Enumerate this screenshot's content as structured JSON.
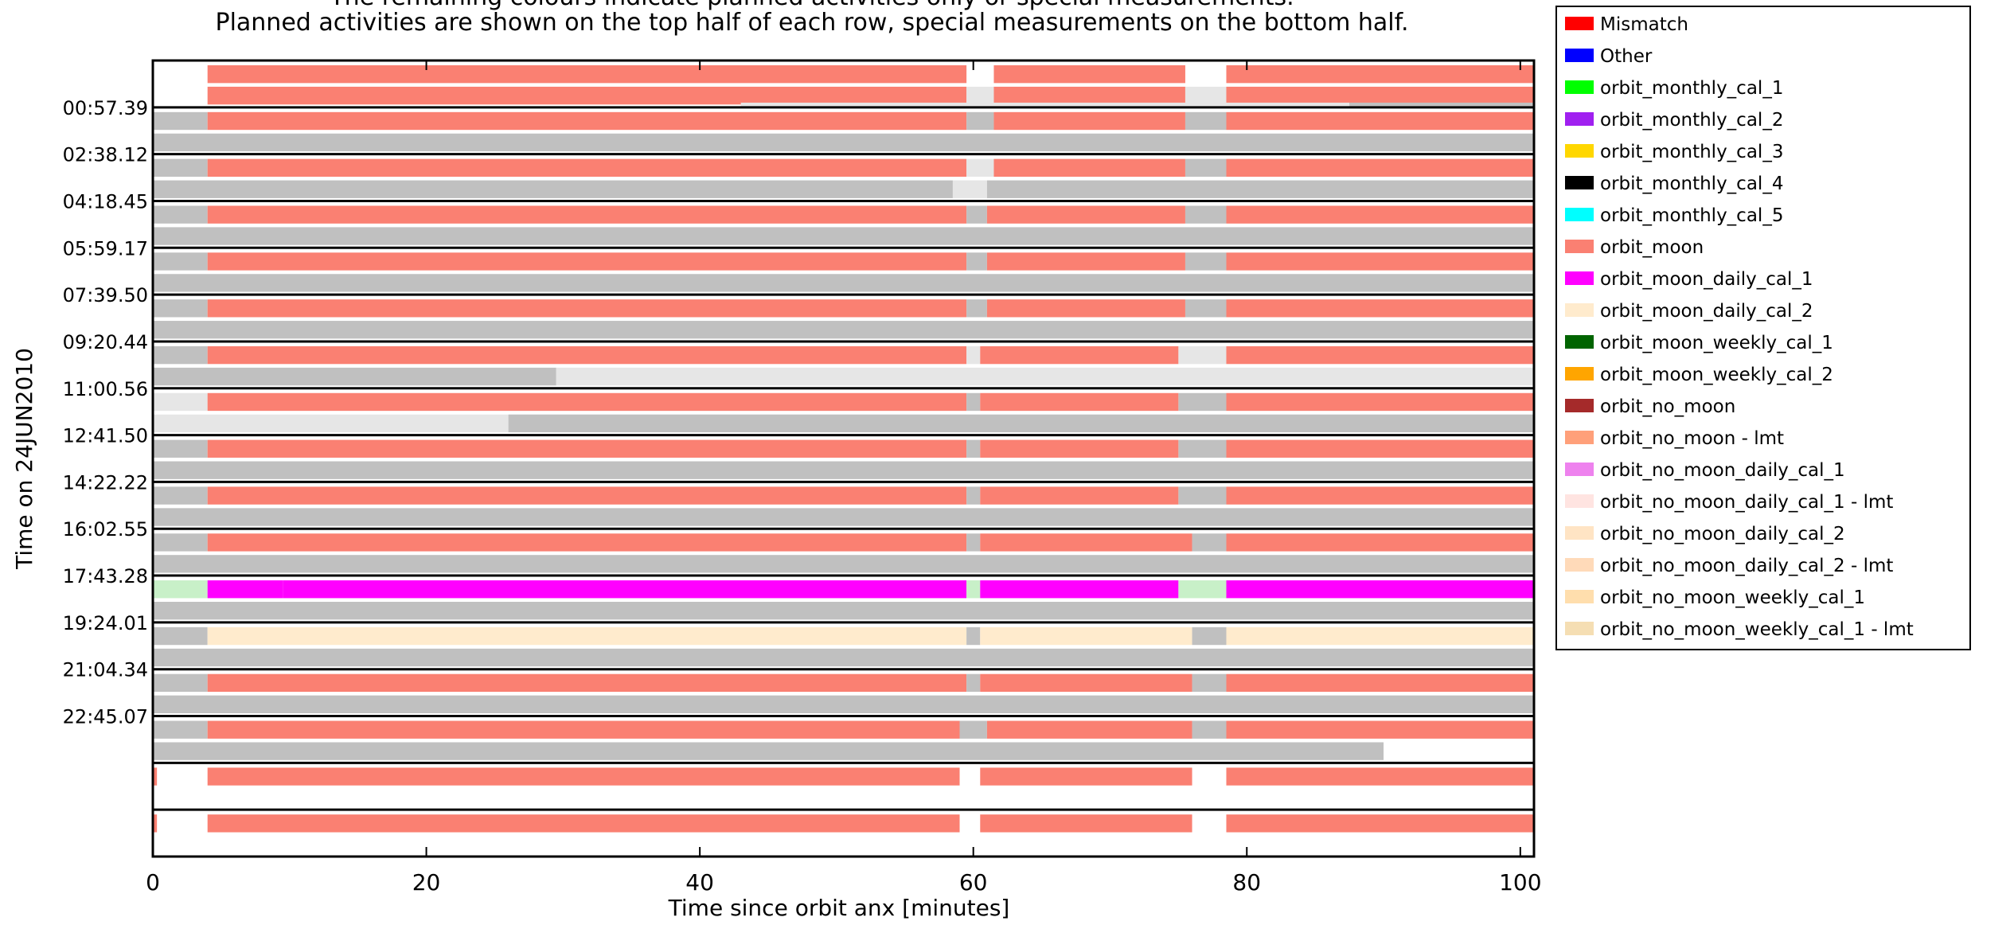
{
  "chart_data": {
    "type": "timeline",
    "title_lines": [
      "The remaining colours indicate planned activities only or special measurements.",
      "Planned activities are shown on the top half of each row, special measurements on the bottom half."
    ],
    "xlabel": "Time since orbit anx [minutes]",
    "ylabel": "Time on 24JUN2010",
    "xlim": [
      0,
      101
    ],
    "x_ticks": [
      0,
      20,
      40,
      60,
      80,
      100
    ],
    "row_count": 17,
    "row_start_labels": [
      "",
      "00:57.39",
      "02:38.12",
      "04:18.45",
      "05:59.17",
      "07:39.50",
      "09:20.44",
      "11:00.56",
      "12:41.50",
      "14:22.22",
      "16:02.55",
      "17:43.28",
      "19:24.01",
      "21:04.34",
      "22:45.07",
      "",
      ""
    ],
    "legend": [
      {
        "label": "Mismatch",
        "color": "#ff0000"
      },
      {
        "label": "Other",
        "color": "#0000ff"
      },
      {
        "label": "orbit_monthly_cal_1",
        "color": "#00ff00"
      },
      {
        "label": "orbit_monthly_cal_2",
        "color": "#a020f0"
      },
      {
        "label": "orbit_monthly_cal_3",
        "color": "#ffd700"
      },
      {
        "label": "orbit_monthly_cal_4",
        "color": "#000000"
      },
      {
        "label": "orbit_monthly_cal_5",
        "color": "#00ffff"
      },
      {
        "label": "orbit_moon",
        "color": "#fa8072"
      },
      {
        "label": "orbit_moon_daily_cal_1",
        "color": "#ff00ff"
      },
      {
        "label": "orbit_moon_daily_cal_2",
        "color": "#ffebcd"
      },
      {
        "label": "orbit_moon_weekly_cal_1",
        "color": "#006400"
      },
      {
        "label": "orbit_moon_weekly_cal_2",
        "color": "#ffa500"
      },
      {
        "label": "orbit_no_moon",
        "color": "#a52a2a"
      },
      {
        "label": "orbit_no_moon - lmt",
        "color": "#ffa07a"
      },
      {
        "label": "orbit_no_moon_daily_cal_1",
        "color": "#ee82ee"
      },
      {
        "label": "orbit_no_moon_daily_cal_1 - lmt",
        "color": "#ffe4e1"
      },
      {
        "label": "orbit_no_moon_daily_cal_2",
        "color": "#ffe4c4"
      },
      {
        "label": "orbit_no_moon_daily_cal_2 - lmt",
        "color": "#ffdab9"
      },
      {
        "label": "orbit_no_moon_weekly_cal_1",
        "color": "#ffdead"
      },
      {
        "label": "orbit_no_moon_weekly_cal_1 - lmt",
        "color": "#f5deb3"
      }
    ],
    "segment_colors": {
      "moon": "#fa8072",
      "gray": "#c0c0c0",
      "light": "#e6e6e6",
      "magenta": "#ff00ff",
      "cream": "#ffebcd",
      "green": "#c8f0c8",
      "violet": "#cc55ff",
      "empty": "#ffffff"
    },
    "rows": [
      {
        "top": [
          [
            4,
            59.5,
            "moon"
          ],
          [
            59.5,
            61.5,
            "empty"
          ],
          [
            61.5,
            75.5,
            "moon"
          ],
          [
            75.5,
            78.5,
            "empty"
          ],
          [
            78.5,
            101,
            "moon"
          ]
        ],
        "bottom": [
          [
            4,
            59.5,
            "moon"
          ],
          [
            59.5,
            61.5,
            "light"
          ],
          [
            61.5,
            75.5,
            "moon"
          ],
          [
            75.5,
            78.5,
            "light"
          ],
          [
            78.5,
            101,
            "moon"
          ]
        ],
        "bottom2": [
          [
            43,
            87.5,
            "light"
          ],
          [
            87.5,
            101,
            "gray"
          ]
        ]
      },
      {
        "top": [
          [
            0,
            4,
            "gray"
          ],
          [
            4,
            59.5,
            "moon"
          ],
          [
            59.5,
            61.5,
            "gray"
          ],
          [
            61.5,
            75.5,
            "moon"
          ],
          [
            75.5,
            78.5,
            "gray"
          ],
          [
            78.5,
            101,
            "moon"
          ]
        ],
        "bottom": [
          [
            0,
            101,
            "gray"
          ]
        ]
      },
      {
        "top": [
          [
            0,
            4,
            "gray"
          ],
          [
            4,
            59.5,
            "moon"
          ],
          [
            59.5,
            61.5,
            "light"
          ],
          [
            61.5,
            75.5,
            "moon"
          ],
          [
            75.5,
            78.5,
            "gray"
          ],
          [
            78.5,
            101,
            "moon"
          ]
        ],
        "bottom": [
          [
            0,
            58.5,
            "gray"
          ],
          [
            58.5,
            61,
            "light"
          ],
          [
            61,
            101,
            "gray"
          ]
        ]
      },
      {
        "top": [
          [
            0,
            4,
            "gray"
          ],
          [
            4,
            59.5,
            "moon"
          ],
          [
            59.5,
            61,
            "gray"
          ],
          [
            61,
            75.5,
            "moon"
          ],
          [
            75.5,
            78.5,
            "gray"
          ],
          [
            78.5,
            101,
            "moon"
          ]
        ],
        "bottom": [
          [
            0,
            101,
            "gray"
          ]
        ]
      },
      {
        "top": [
          [
            0,
            4,
            "gray"
          ],
          [
            4,
            59.5,
            "moon"
          ],
          [
            59.5,
            61,
            "gray"
          ],
          [
            61,
            75.5,
            "moon"
          ],
          [
            75.5,
            78.5,
            "gray"
          ],
          [
            78.5,
            101,
            "moon"
          ]
        ],
        "bottom": [
          [
            0,
            101,
            "gray"
          ]
        ]
      },
      {
        "top": [
          [
            0,
            4,
            "gray"
          ],
          [
            4,
            59.5,
            "moon"
          ],
          [
            59.5,
            61,
            "gray"
          ],
          [
            61,
            75.5,
            "moon"
          ],
          [
            75.5,
            78.5,
            "gray"
          ],
          [
            78.5,
            101,
            "moon"
          ]
        ],
        "bottom": [
          [
            0,
            101,
            "gray"
          ]
        ]
      },
      {
        "top": [
          [
            0,
            4,
            "gray"
          ],
          [
            4,
            59.5,
            "moon"
          ],
          [
            59.5,
            60.5,
            "light"
          ],
          [
            60.5,
            75,
            "moon"
          ],
          [
            75,
            78.5,
            "light"
          ],
          [
            78.5,
            101,
            "moon"
          ]
        ],
        "bottom": [
          [
            0,
            29.5,
            "gray"
          ],
          [
            29.5,
            101,
            "light"
          ]
        ]
      },
      {
        "top": [
          [
            0,
            4,
            "light"
          ],
          [
            4,
            59.5,
            "moon"
          ],
          [
            59.5,
            60.5,
            "gray"
          ],
          [
            60.5,
            75,
            "moon"
          ],
          [
            75,
            78.5,
            "gray"
          ],
          [
            78.5,
            101,
            "moon"
          ]
        ],
        "bottom": [
          [
            0,
            26,
            "light"
          ],
          [
            26,
            101,
            "gray"
          ]
        ]
      },
      {
        "top": [
          [
            0,
            4,
            "gray"
          ],
          [
            4,
            59.5,
            "moon"
          ],
          [
            59.5,
            60.5,
            "gray"
          ],
          [
            60.5,
            75,
            "moon"
          ],
          [
            75,
            78.5,
            "gray"
          ],
          [
            78.5,
            101,
            "moon"
          ]
        ],
        "bottom": [
          [
            0,
            101,
            "gray"
          ]
        ]
      },
      {
        "top": [
          [
            0,
            4,
            "gray"
          ],
          [
            4,
            59.5,
            "moon"
          ],
          [
            59.5,
            60.5,
            "gray"
          ],
          [
            60.5,
            75,
            "moon"
          ],
          [
            75,
            78.5,
            "gray"
          ],
          [
            78.5,
            101,
            "moon"
          ]
        ],
        "bottom": [
          [
            0,
            101,
            "gray"
          ]
        ]
      },
      {
        "top": [
          [
            0,
            4,
            "gray"
          ],
          [
            4,
            59.5,
            "moon"
          ],
          [
            59.5,
            60.5,
            "gray"
          ],
          [
            60.5,
            76,
            "moon"
          ],
          [
            76,
            78.5,
            "gray"
          ],
          [
            78.5,
            101,
            "moon"
          ]
        ],
        "bottom": [
          [
            0,
            101,
            "gray"
          ]
        ]
      },
      {
        "top": [
          [
            0,
            4,
            "green"
          ],
          [
            4,
            9.5,
            "magenta"
          ],
          [
            9.5,
            59.5,
            "magenta"
          ],
          [
            59.5,
            60.5,
            "green"
          ],
          [
            60.5,
            75,
            "magenta"
          ],
          [
            75,
            78.5,
            "green"
          ],
          [
            78.5,
            101,
            "magenta"
          ]
        ],
        "bottom": [
          [
            0,
            101,
            "gray"
          ]
        ]
      },
      {
        "top": [
          [
            0,
            4,
            "gray"
          ],
          [
            4,
            59.5,
            "cream"
          ],
          [
            59.5,
            60.5,
            "gray"
          ],
          [
            60.5,
            76,
            "cream"
          ],
          [
            76,
            78.5,
            "gray"
          ],
          [
            78.5,
            101,
            "cream"
          ]
        ],
        "bottom": [
          [
            0,
            101,
            "gray"
          ]
        ]
      },
      {
        "top": [
          [
            0,
            4,
            "gray"
          ],
          [
            4,
            59.5,
            "moon"
          ],
          [
            59.5,
            60.5,
            "gray"
          ],
          [
            60.5,
            76,
            "moon"
          ],
          [
            76,
            78.5,
            "gray"
          ],
          [
            78.5,
            101,
            "moon"
          ]
        ],
        "bottom": [
          [
            0,
            101,
            "gray"
          ]
        ]
      },
      {
        "top": [
          [
            0,
            4,
            "gray"
          ],
          [
            4,
            59,
            "moon"
          ],
          [
            59,
            61,
            "gray"
          ],
          [
            61,
            76,
            "moon"
          ],
          [
            76,
            78.5,
            "gray"
          ],
          [
            78.5,
            101,
            "moon"
          ]
        ],
        "bottom": [
          [
            0,
            90,
            "gray"
          ]
        ]
      },
      {
        "top": [
          [
            0,
            0.3,
            "moon"
          ],
          [
            4,
            59,
            "moon"
          ],
          [
            60.5,
            76,
            "moon"
          ],
          [
            78.5,
            101,
            "moon"
          ]
        ],
        "bottom": []
      },
      {
        "top": [
          [
            0,
            0.3,
            "moon"
          ],
          [
            4,
            59,
            "moon"
          ],
          [
            60.5,
            76,
            "moon"
          ],
          [
            78.5,
            101,
            "moon"
          ]
        ],
        "bottom": []
      }
    ]
  }
}
